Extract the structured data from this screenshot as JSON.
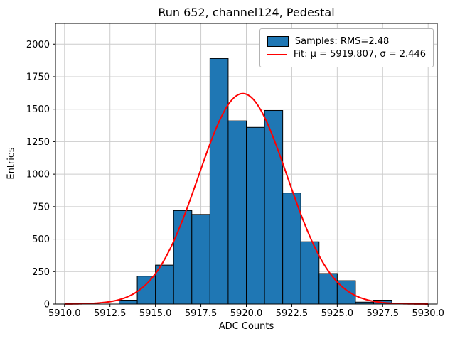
{
  "chart_data": {
    "type": "bar",
    "title": "Run 652, channel124, Pedestal",
    "xlabel": "ADC Counts",
    "ylabel": "Entries",
    "xlim": [
      5909.5,
      5930.5
    ],
    "ylim": [
      0,
      2160
    ],
    "x_ticks": [
      5910.0,
      5912.5,
      5915.0,
      5917.5,
      5920.0,
      5922.5,
      5925.0,
      5927.5,
      5930.0
    ],
    "y_ticks": [
      0,
      250,
      500,
      750,
      1000,
      1250,
      1500,
      1750,
      2000
    ],
    "grid": true,
    "bin_width": 1,
    "bins_left_edges": [
      5913,
      5914,
      5915,
      5916,
      5917,
      5918,
      5919,
      5920,
      5921,
      5922,
      5923,
      5924,
      5925,
      5926,
      5927
    ],
    "counts": [
      30,
      215,
      300,
      720,
      690,
      1890,
      1410,
      1360,
      1490,
      855,
      480,
      235,
      180,
      15,
      30
    ],
    "bar_color": "#1f77b4",
    "bar_edge_color": "#000000",
    "fit": {
      "mu": 5919.807,
      "sigma": 2.446,
      "amplitude": 1620,
      "color": "#ff0000",
      "x_start": 5910,
      "x_end": 5930
    },
    "legend": {
      "position": "upper right",
      "entries": [
        {
          "type": "patch",
          "label": "Samples: RMS=2.48"
        },
        {
          "type": "line",
          "label": "Fit: μ = 5919.807, σ = 2.446"
        }
      ]
    }
  }
}
